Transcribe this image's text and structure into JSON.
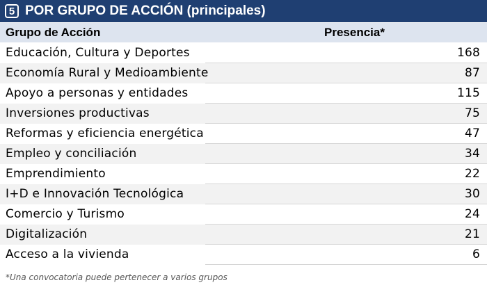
{
  "header": {
    "badge": "5",
    "title": "POR GRUPO DE ACCIÓN (principales)"
  },
  "columns": {
    "group": "Grupo de Acción",
    "presence": "Presencia*"
  },
  "rows": [
    {
      "label": "Educación, Cultura y Deportes",
      "value": "168"
    },
    {
      "label": "Economía Rural y Medioambiente",
      "value": "87"
    },
    {
      "label": "Apoyo a personas y entidades",
      "value": "115"
    },
    {
      "label": "Inversiones productivas",
      "value": "75"
    },
    {
      "label": "Reformas y eficiencia energética",
      "value": "47"
    },
    {
      "label": "Empleo y conciliación",
      "value": "34"
    },
    {
      "label": "Emprendimiento",
      "value": "22"
    },
    {
      "label": "I+D e Innovación Tecnológica",
      "value": "30"
    },
    {
      "label": "Comercio y Turismo",
      "value": "24"
    },
    {
      "label": "Digitalización",
      "value": "21"
    },
    {
      "label": "Acceso a la vivienda",
      "value": "6"
    }
  ],
  "footnote": "*Una convocatoria puede pertenecer a varios grupos",
  "colors": {
    "title_bg": "#1f3f72",
    "header_bg": "#dde4ef",
    "stripe_bg": "#f2f2f2"
  }
}
